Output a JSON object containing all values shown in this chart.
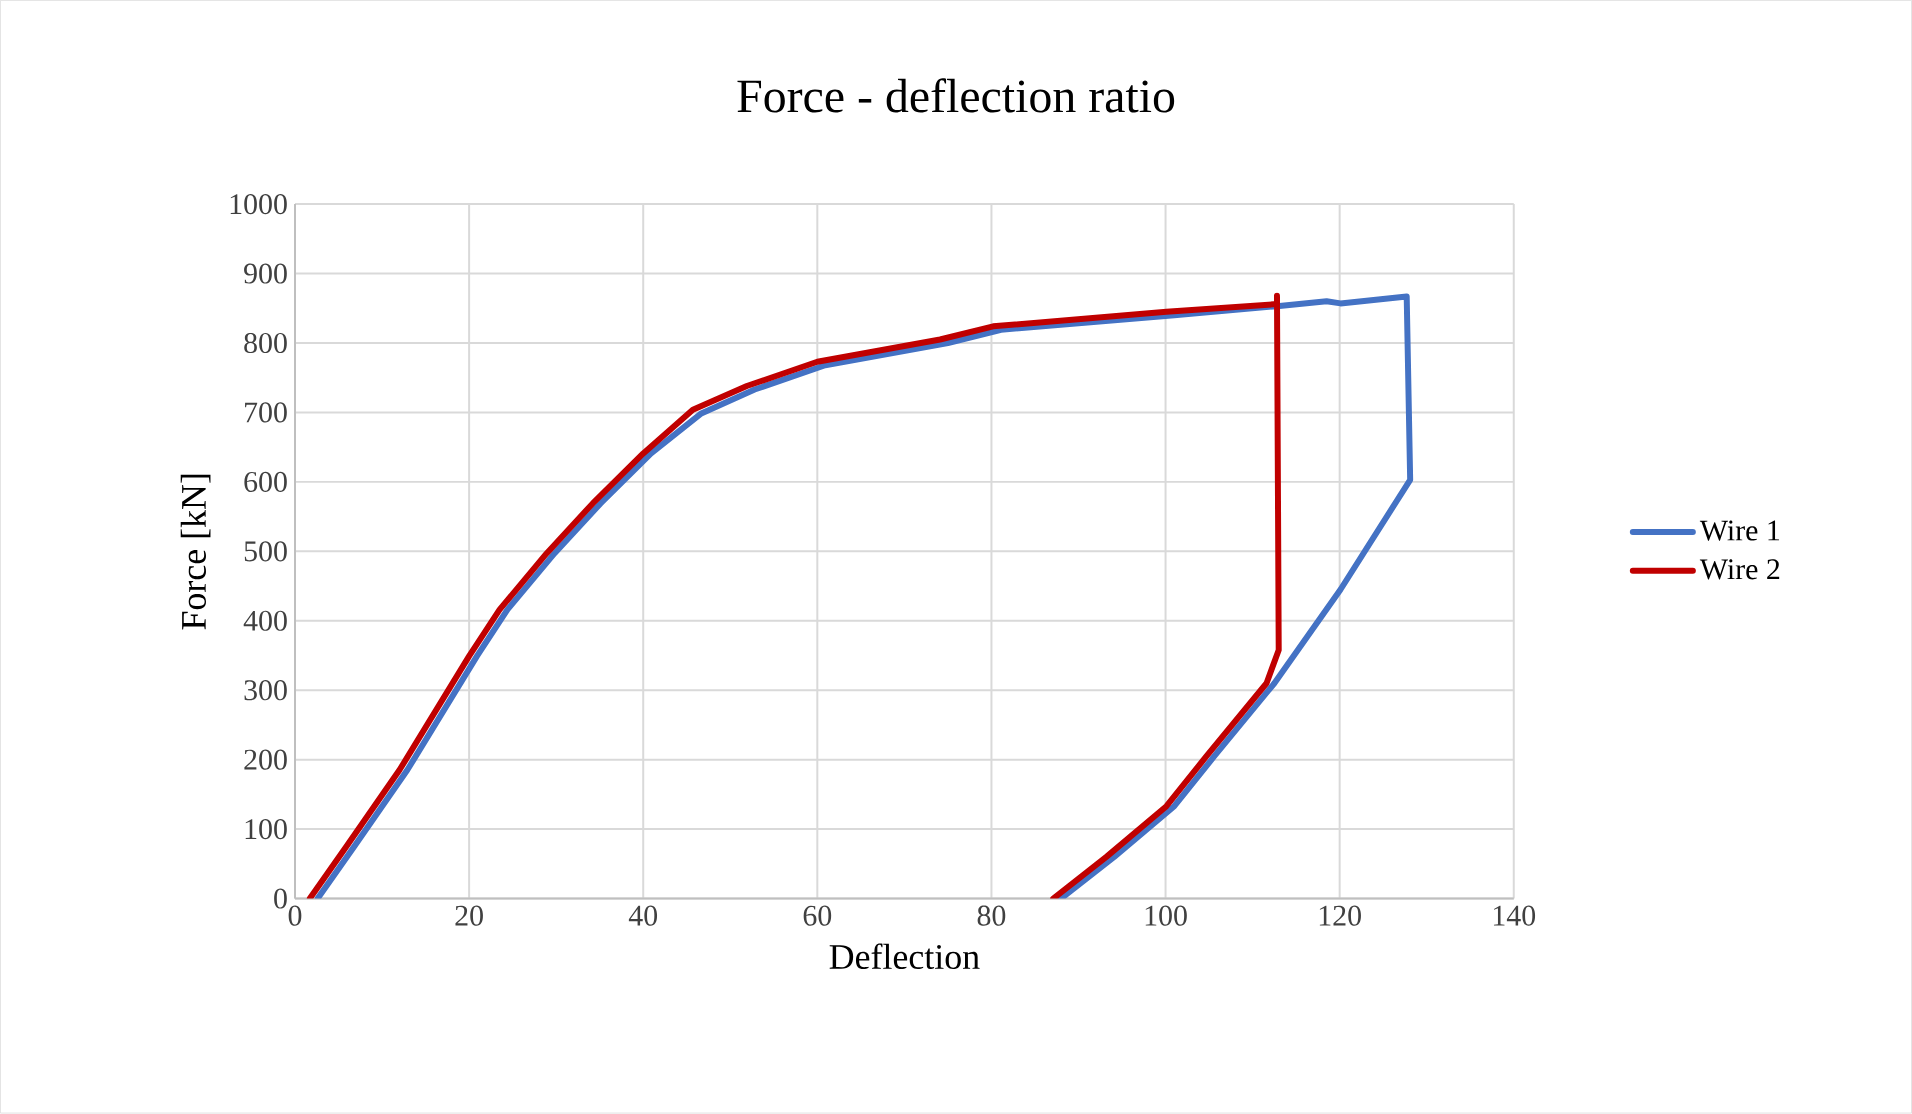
{
  "chart_data": {
    "type": "line",
    "title": "Force - deflection ratio",
    "xlabel": "Deflection",
    "ylabel": "Force [kN]",
    "xlim": [
      0,
      140
    ],
    "ylim": [
      0,
      1000
    ],
    "xticks": [
      0,
      20,
      40,
      60,
      80,
      100,
      120,
      140
    ],
    "yticks": [
      0,
      100,
      200,
      300,
      400,
      500,
      600,
      700,
      800,
      900,
      1000
    ],
    "grid": true,
    "legend": "right",
    "series": [
      {
        "name": "Wire 1",
        "color": "#4472c4",
        "x": [
          2.6,
          6.8,
          12.9,
          20.9,
          24.4,
          29.8,
          35.1,
          40.9,
          46.6,
          52.8,
          60.9,
          75,
          81.1,
          101,
          112.8,
          118.5,
          120.1,
          127.7,
          128.1,
          120.1,
          112.5,
          105.6,
          101,
          94.1,
          88
        ],
        "values": [
          0,
          75,
          185,
          349,
          416,
          497,
          569,
          641,
          698,
          733,
          768,
          800,
          819,
          840,
          853,
          860,
          857,
          867,
          603,
          445,
          310,
          205,
          133,
          60,
          0
        ]
      },
      {
        "name": "Wire 2",
        "color": "#c00000",
        "x": [
          1.7,
          5.9,
          12.0,
          20,
          23.5,
          28.9,
          34.2,
          40,
          45.7,
          51.9,
          60,
          74.1,
          80.2,
          100.1,
          112.8,
          112.8,
          113.0,
          111.6,
          104.7,
          100.1,
          93.2,
          87.1
        ],
        "values": [
          0,
          75,
          185,
          349,
          416,
          497,
          569,
          641,
          704,
          738,
          773,
          805,
          824,
          845,
          856,
          868,
          358,
          310,
          205,
          133,
          60,
          0
        ]
      }
    ]
  }
}
